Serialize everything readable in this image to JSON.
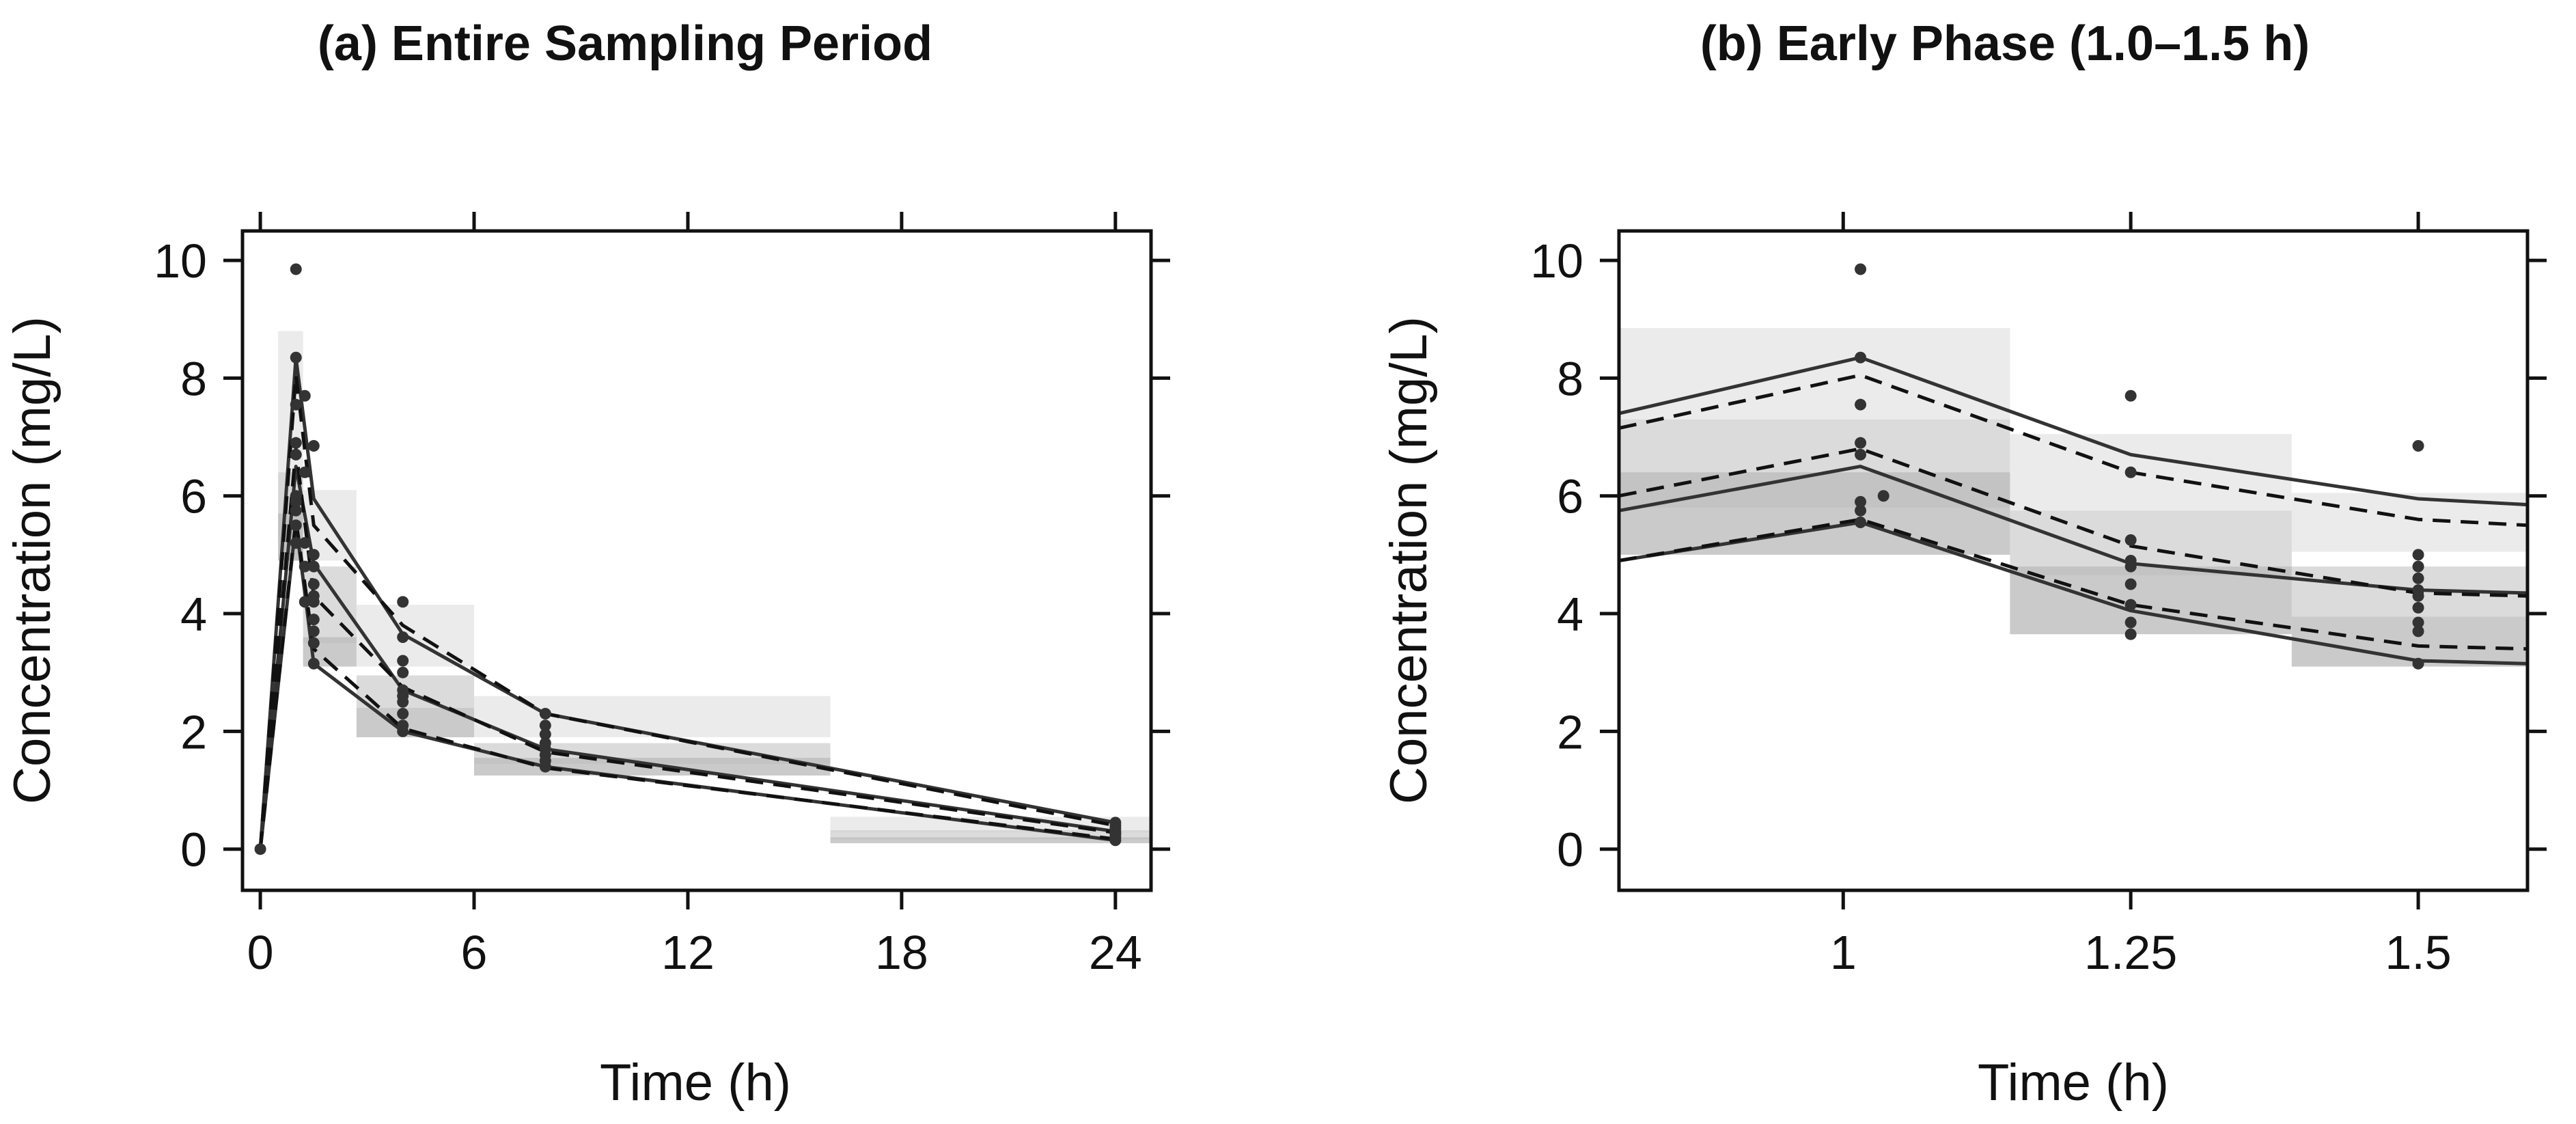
{
  "chart_data": [
    {
      "type": "line",
      "title": "(a) Entire Sampling Period",
      "xlabel": "Time (h)",
      "ylabel": "Concentration (mg/L)",
      "xlim": [
        -0.5,
        25
      ],
      "ylim": [
        -0.7,
        10.5
      ],
      "x_ticks": [
        0,
        6,
        12,
        18,
        24
      ],
      "y_ticks": [
        0,
        2,
        4,
        6,
        8,
        10
      ],
      "grid": false,
      "legend": "none",
      "colors": {
        "band_outer": "#e6e6e6",
        "band_middle": "#d2d2d2",
        "band_inner": "#bdbdbd",
        "observed_line": "#333333",
        "predicted_line": "#111111",
        "points": "#333333"
      },
      "bands": [
        {
          "x": [
            0.5,
            1.2
          ],
          "y": [
            5.3,
            8.8
          ],
          "level": "outer"
        },
        {
          "x": [
            1.2,
            2.7
          ],
          "y": [
            4.9,
            6.1
          ],
          "level": "outer"
        },
        {
          "x": [
            2.7,
            6.0
          ],
          "y": [
            3.1,
            4.15
          ],
          "level": "outer"
        },
        {
          "x": [
            6.0,
            16.0
          ],
          "y": [
            1.9,
            2.6
          ],
          "level": "outer"
        },
        {
          "x": [
            16.0,
            25.0
          ],
          "y": [
            0.28,
            0.55
          ],
          "level": "outer"
        },
        {
          "x": [
            0.5,
            1.2
          ],
          "y": [
            4.9,
            6.4
          ],
          "level": "middle"
        },
        {
          "x": [
            1.2,
            2.7
          ],
          "y": [
            3.5,
            4.8
          ],
          "level": "middle"
        },
        {
          "x": [
            2.7,
            6.0
          ],
          "y": [
            2.4,
            2.95
          ],
          "level": "middle"
        },
        {
          "x": [
            6.0,
            16.0
          ],
          "y": [
            1.45,
            1.8
          ],
          "level": "middle"
        },
        {
          "x": [
            16.0,
            25.0
          ],
          "y": [
            0.17,
            0.32
          ],
          "level": "middle"
        },
        {
          "x": [
            0.5,
            1.2
          ],
          "y": [
            4.9,
            5.7
          ],
          "level": "inner"
        },
        {
          "x": [
            1.2,
            2.7
          ],
          "y": [
            3.1,
            3.6
          ],
          "level": "inner"
        },
        {
          "x": [
            2.7,
            6.0
          ],
          "y": [
            1.9,
            2.4
          ],
          "level": "inner"
        },
        {
          "x": [
            6.0,
            16.0
          ],
          "y": [
            1.25,
            1.55
          ],
          "level": "inner"
        },
        {
          "x": [
            16.0,
            25.0
          ],
          "y": [
            0.1,
            0.2
          ],
          "level": "inner"
        }
      ],
      "series": [
        {
          "style": "solid",
          "x": [
            0,
            1,
            1.5,
            4,
            8,
            24
          ],
          "y": [
            0,
            8.35,
            5.95,
            3.65,
            2.3,
            0.45
          ]
        },
        {
          "style": "solid",
          "x": [
            0,
            1,
            1.5,
            4,
            8,
            24
          ],
          "y": [
            0,
            6.5,
            4.85,
            2.7,
            1.7,
            0.3
          ]
        },
        {
          "style": "solid",
          "x": [
            0,
            1,
            1.5,
            4,
            8,
            24
          ],
          "y": [
            0,
            5.55,
            3.15,
            2.0,
            1.4,
            0.15
          ]
        },
        {
          "style": "dashed",
          "x": [
            0,
            1,
            1.5,
            4,
            8,
            24
          ],
          "y": [
            0,
            8.05,
            5.5,
            3.8,
            2.3,
            0.4
          ]
        },
        {
          "style": "dashed",
          "x": [
            0,
            1,
            1.5,
            4,
            8,
            24
          ],
          "y": [
            0,
            6.8,
            4.3,
            2.75,
            1.65,
            0.28
          ]
        },
        {
          "style": "dashed",
          "x": [
            0,
            1,
            1.5,
            4,
            8,
            24
          ],
          "y": [
            0,
            5.6,
            3.4,
            2.05,
            1.38,
            0.17
          ]
        }
      ],
      "points": {
        "x": [
          0,
          1,
          1,
          1,
          1,
          1,
          1,
          1,
          1,
          1,
          1,
          1.25,
          1.25,
          1.25,
          1.25,
          1.25,
          1.5,
          1.5,
          1.5,
          1.5,
          1.5,
          1.5,
          1.5,
          1.5,
          1.5,
          1.5,
          4,
          4,
          4,
          4,
          4,
          4,
          4,
          4,
          4,
          4,
          8,
          8,
          8,
          8,
          8,
          8,
          8,
          8,
          24,
          24,
          24,
          24,
          24,
          24,
          24,
          24
        ],
        "y": [
          0,
          9.85,
          8.35,
          7.55,
          6.9,
          6.7,
          6.0,
          5.9,
          5.75,
          5.5,
          5.2,
          7.7,
          6.4,
          5.2,
          4.8,
          4.2,
          6.85,
          5.0,
          4.8,
          4.5,
          4.3,
          4.2,
          3.9,
          3.7,
          3.5,
          3.15,
          4.2,
          3.6,
          3.2,
          3.0,
          2.7,
          2.6,
          2.5,
          2.3,
          2.1,
          2.0,
          2.3,
          2.1,
          1.95,
          1.8,
          1.7,
          1.6,
          1.5,
          1.4,
          0.45,
          0.4,
          0.35,
          0.3,
          0.28,
          0.25,
          0.2,
          0.15
        ]
      }
    },
    {
      "type": "line",
      "title": "(b) Early Phase (1.0–1.5 h)",
      "xlabel": "Time (h)",
      "ylabel": "Concentration (mg/L)",
      "xlim": [
        0.805,
        1.595
      ],
      "ylim": [
        -0.7,
        10.5
      ],
      "x_ticks": [
        1,
        1.25,
        1.5
      ],
      "x_tick_labels": [
        "1",
        "1.25",
        "1.5"
      ],
      "y_ticks": [
        0,
        2,
        4,
        6,
        8,
        10
      ],
      "grid": false,
      "legend": "none",
      "colors": {
        "band_outer": "#e6e6e6",
        "band_middle": "#d2d2d2",
        "band_inner": "#bdbdbd",
        "observed_line": "#333333",
        "predicted_line": "#111111",
        "points": "#333333"
      },
      "bands": [
        {
          "x": [
            0.805,
            1.145
          ],
          "y": [
            7.3,
            8.85
          ],
          "level": "outer"
        },
        {
          "x": [
            1.145,
            1.39
          ],
          "y": [
            5.75,
            7.05
          ],
          "level": "outer"
        },
        {
          "x": [
            1.39,
            1.595
          ],
          "y": [
            5.05,
            6.05
          ],
          "level": "outer"
        },
        {
          "x": [
            0.805,
            1.145
          ],
          "y": [
            5.8,
            7.3
          ],
          "level": "middle"
        },
        {
          "x": [
            1.145,
            1.39
          ],
          "y": [
            4.65,
            5.75
          ],
          "level": "middle"
        },
        {
          "x": [
            1.39,
            1.595
          ],
          "y": [
            3.95,
            4.8
          ],
          "level": "middle"
        },
        {
          "x": [
            0.805,
            1.145
          ],
          "y": [
            5.0,
            6.4
          ],
          "level": "inner"
        },
        {
          "x": [
            1.145,
            1.39
          ],
          "y": [
            3.65,
            4.8
          ],
          "level": "inner"
        },
        {
          "x": [
            1.39,
            1.595
          ],
          "y": [
            3.1,
            3.95
          ],
          "level": "inner"
        }
      ],
      "series": [
        {
          "style": "solid",
          "x": [
            0.805,
            1.015,
            1.25,
            1.5,
            1.595
          ],
          "y": [
            7.4,
            8.35,
            6.7,
            5.95,
            5.85
          ]
        },
        {
          "style": "solid",
          "x": [
            0.805,
            1.015,
            1.25,
            1.5,
            1.595
          ],
          "y": [
            5.75,
            6.5,
            4.85,
            4.4,
            4.35
          ]
        },
        {
          "style": "solid",
          "x": [
            0.805,
            1.015,
            1.25,
            1.5,
            1.595
          ],
          "y": [
            4.9,
            5.55,
            4.05,
            3.2,
            3.15
          ]
        },
        {
          "style": "dashed",
          "x": [
            0.805,
            1.015,
            1.25,
            1.5,
            1.595
          ],
          "y": [
            7.15,
            8.05,
            6.4,
            5.6,
            5.5
          ]
        },
        {
          "style": "dashed",
          "x": [
            0.805,
            1.015,
            1.25,
            1.5,
            1.595
          ],
          "y": [
            6.0,
            6.8,
            5.15,
            4.35,
            4.3
          ]
        },
        {
          "style": "dashed",
          "x": [
            0.805,
            1.015,
            1.25,
            1.5,
            1.595
          ],
          "y": [
            4.9,
            5.6,
            4.15,
            3.45,
            3.4
          ]
        }
      ],
      "points": {
        "x": [
          1.015,
          1.015,
          1.015,
          1.015,
          1.015,
          1.015,
          1.015,
          1.015,
          1.035,
          1.25,
          1.25,
          1.25,
          1.25,
          1.25,
          1.25,
          1.25,
          1.25,
          1.25,
          1.5,
          1.5,
          1.5,
          1.5,
          1.5,
          1.5,
          1.5,
          1.5,
          1.5,
          1.5
        ],
        "y": [
          9.85,
          8.35,
          7.55,
          6.9,
          6.7,
          5.9,
          5.75,
          5.55,
          6.0,
          7.7,
          6.4,
          5.25,
          4.9,
          4.8,
          4.5,
          4.15,
          3.85,
          3.65,
          6.85,
          5.0,
          4.8,
          4.6,
          4.4,
          4.3,
          4.1,
          3.85,
          3.7,
          3.15
        ]
      }
    }
  ]
}
